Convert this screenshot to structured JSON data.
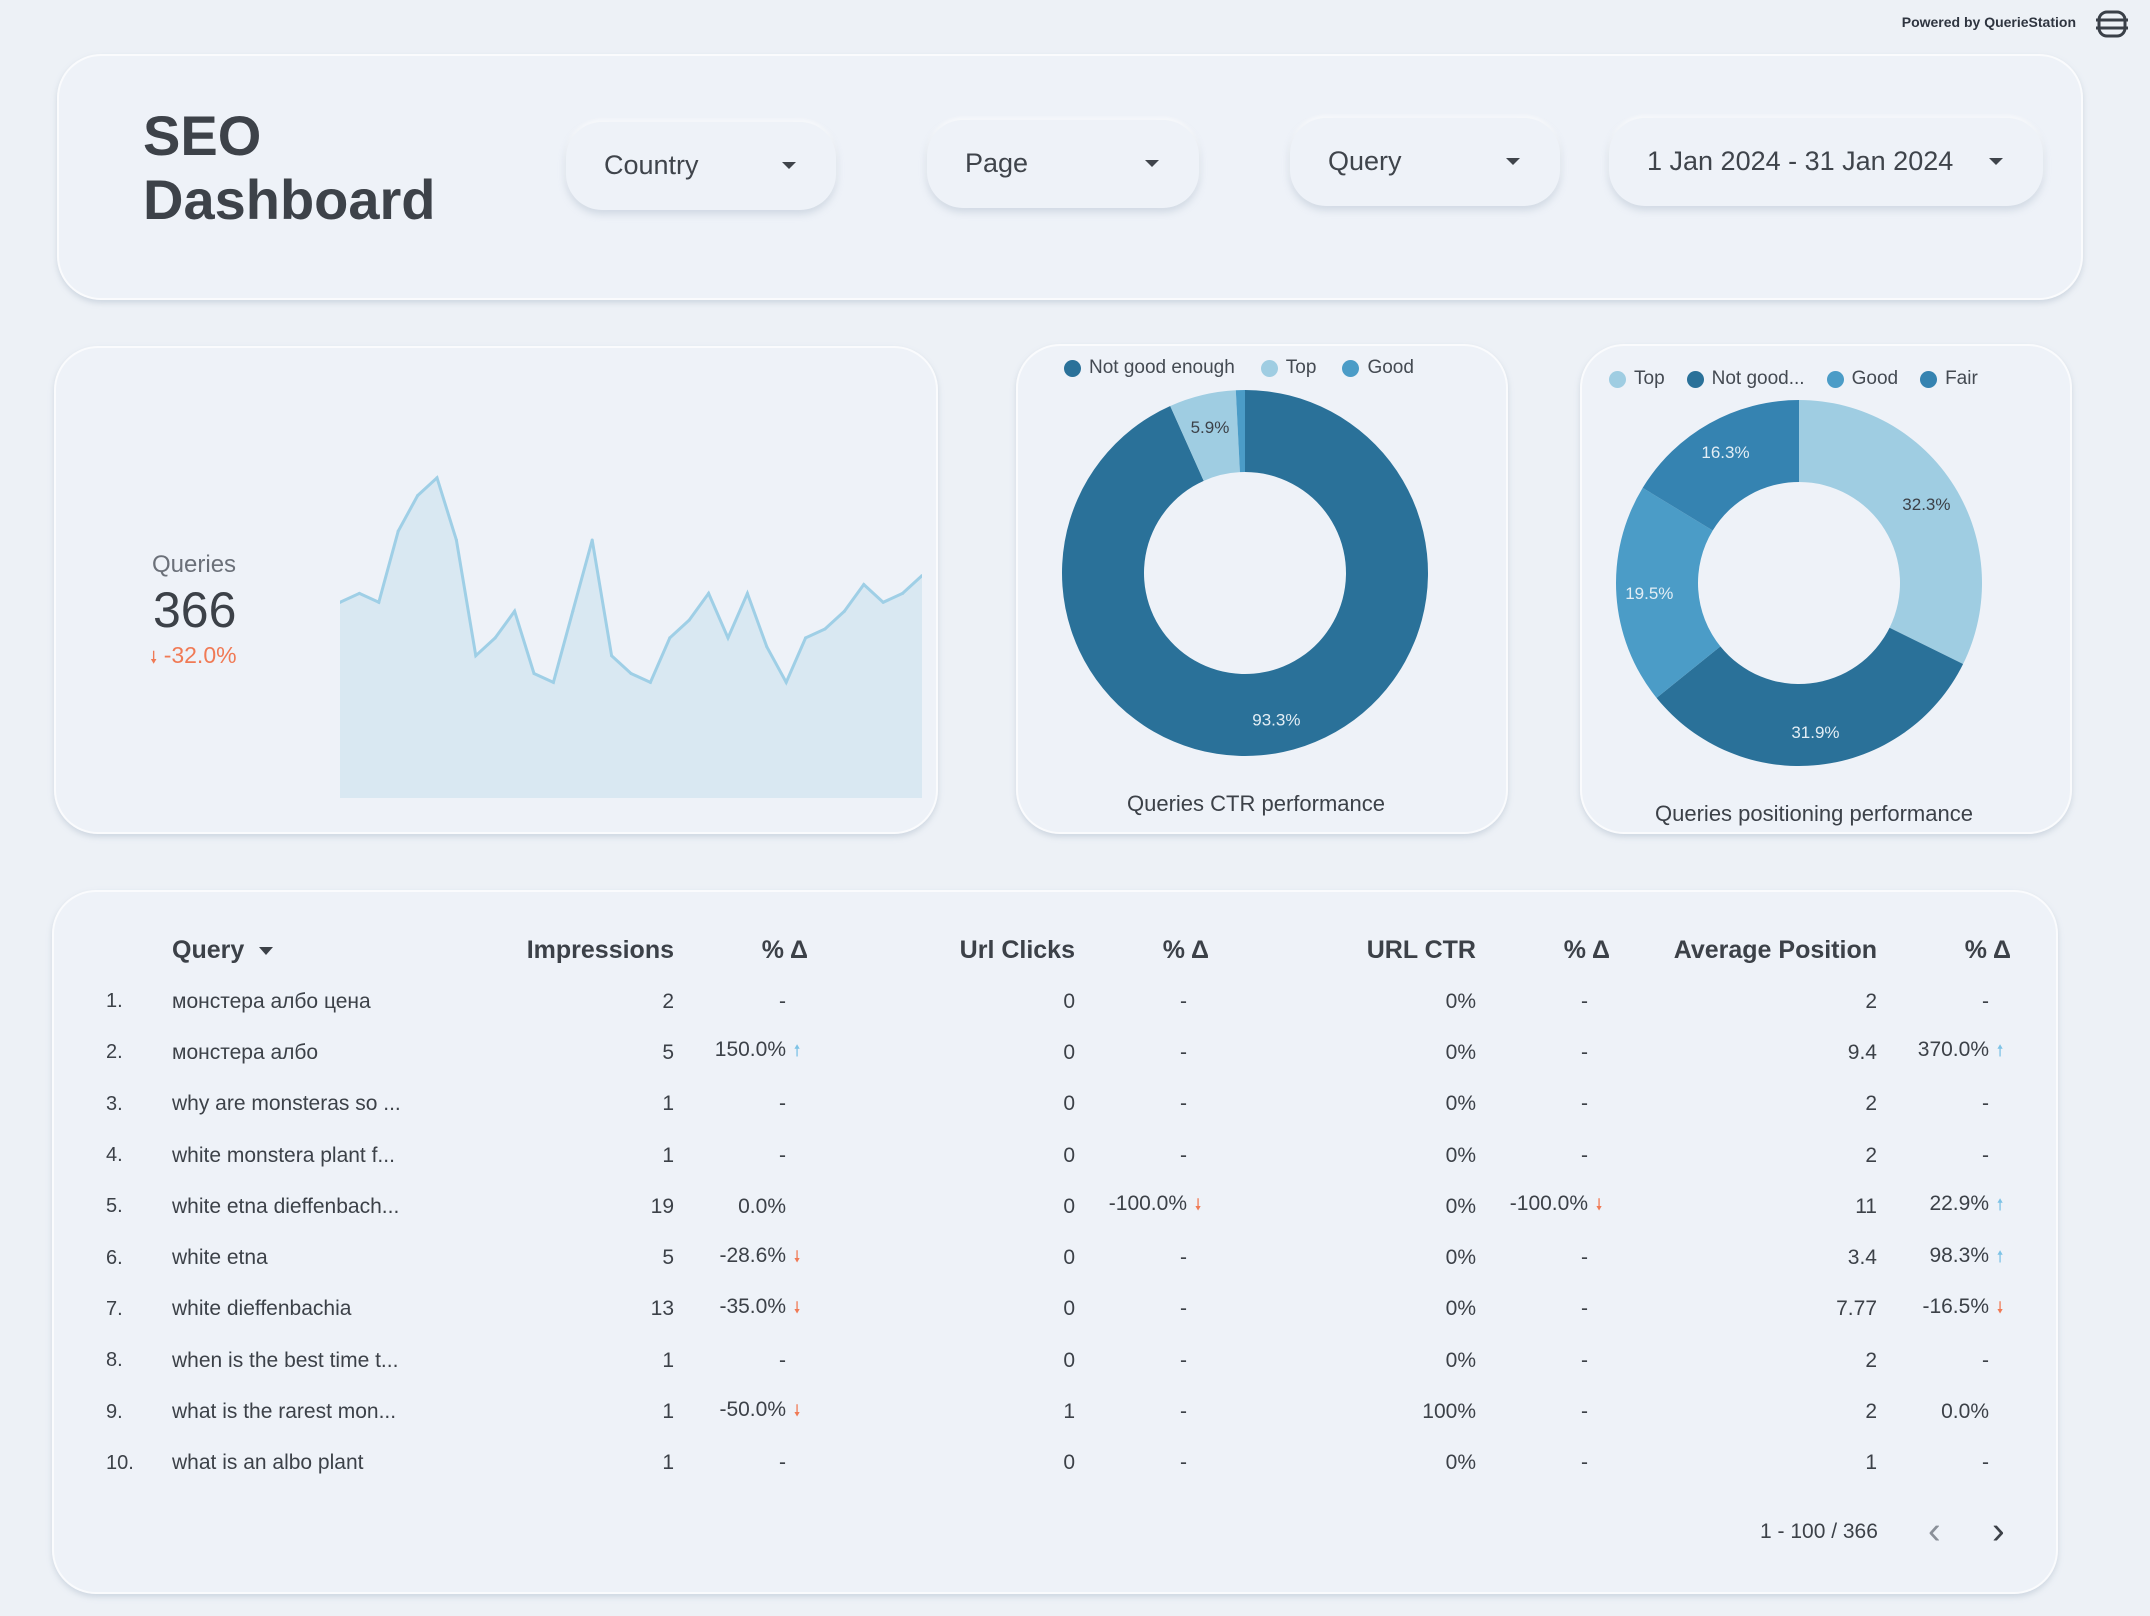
{
  "header": {
    "powered_by": "Powered by QuerieStation",
    "title_line1": "SEO",
    "title_line2": "Dashboard"
  },
  "filters": [
    {
      "label": "Country"
    },
    {
      "label": "Page"
    },
    {
      "label": "Query"
    },
    {
      "label": "1 Jan 2024 - 31 Jan 2024"
    }
  ],
  "scorecard": {
    "label": "Queries",
    "value": "366",
    "delta": "-32.0%",
    "delta_icon": "arrow-down-icon"
  },
  "chart_data": [
    {
      "type": "area",
      "x": [
        1,
        2,
        3,
        4,
        5,
        6,
        7,
        8,
        9,
        10,
        11,
        12,
        13,
        14,
        15,
        16,
        17,
        18,
        19,
        20,
        21,
        22,
        23,
        24,
        25,
        26,
        27,
        28,
        29,
        30,
        31
      ],
      "values": [
        22,
        23,
        22,
        30,
        34,
        36,
        29,
        16,
        18,
        21,
        14,
        13,
        21,
        29,
        16,
        14,
        13,
        18,
        20,
        23,
        18,
        23,
        17,
        13,
        18,
        19,
        21,
        24,
        22,
        23,
        25
      ],
      "color": "#9fcfe6",
      "fill": "#d9e8f2"
    },
    {
      "type": "pie",
      "caption": "Queries CTR performance",
      "labels": [
        "Not good enough",
        "Top",
        "Good"
      ],
      "values": [
        93.3,
        5.9,
        0.8
      ],
      "value_labels": [
        "93.3%",
        "5.9%",
        ""
      ],
      "colors": [
        "#2a7199",
        "#9fcde2",
        "#4b9cc7"
      ]
    },
    {
      "type": "pie",
      "caption": "Queries positioning performance",
      "labels": [
        "Top",
        "Not good...",
        "Good",
        "Fair"
      ],
      "values": [
        32.3,
        31.9,
        19.5,
        16.3
      ],
      "value_labels": [
        "32.3%",
        "31.9%",
        "19.5%",
        "16.3%"
      ],
      "colors": [
        "#9fcde2",
        "#2a7199",
        "#4b9cc7",
        "#3583b1"
      ]
    }
  ],
  "table": {
    "headers": {
      "query": "Query",
      "impressions": "Impressions",
      "imp_delta": "% Δ",
      "clicks": "Url Clicks",
      "clicks_delta": "% Δ",
      "ctr": "URL CTR",
      "ctr_delta": "% Δ",
      "avg_pos": "Average Position",
      "pos_delta": "% Δ"
    },
    "sort_icon": "caret-down-icon",
    "rows": [
      {
        "n": "1.",
        "q": "монстера албо цена",
        "imp": "2",
        "impd": "-",
        "impdir": "",
        "cl": "0",
        "cld": "-",
        "cldir": "",
        "ctr": "0%",
        "ctrd": "-",
        "ctrdir": "",
        "pos": "2",
        "posd": "-",
        "posdir": ""
      },
      {
        "n": "2.",
        "q": "монстера албо",
        "imp": "5",
        "impd": "150.0%",
        "impdir": "up",
        "cl": "0",
        "cld": "-",
        "cldir": "",
        "ctr": "0%",
        "ctrd": "-",
        "ctrdir": "",
        "pos": "9.4",
        "posd": "370.0%",
        "posdir": "up"
      },
      {
        "n": "3.",
        "q": "why are monsteras so ...",
        "imp": "1",
        "impd": "-",
        "impdir": "",
        "cl": "0",
        "cld": "-",
        "cldir": "",
        "ctr": "0%",
        "ctrd": "-",
        "ctrdir": "",
        "pos": "2",
        "posd": "-",
        "posdir": ""
      },
      {
        "n": "4.",
        "q": "white monstera plant f...",
        "imp": "1",
        "impd": "-",
        "impdir": "",
        "cl": "0",
        "cld": "-",
        "cldir": "",
        "ctr": "0%",
        "ctrd": "-",
        "ctrdir": "",
        "pos": "2",
        "posd": "-",
        "posdir": ""
      },
      {
        "n": "5.",
        "q": "white etna dieffenbach...",
        "imp": "19",
        "impd": "0.0%",
        "impdir": "",
        "cl": "0",
        "cld": "-100.0%",
        "cldir": "down",
        "ctr": "0%",
        "ctrd": "-100.0%",
        "ctrdir": "down",
        "pos": "11",
        "posd": "22.9%",
        "posdir": "up"
      },
      {
        "n": "6.",
        "q": "white etna",
        "imp": "5",
        "impd": "-28.6%",
        "impdir": "down",
        "cl": "0",
        "cld": "-",
        "cldir": "",
        "ctr": "0%",
        "ctrd": "-",
        "ctrdir": "",
        "pos": "3.4",
        "posd": "98.3%",
        "posdir": "up"
      },
      {
        "n": "7.",
        "q": "white dieffenbachia",
        "imp": "13",
        "impd": "-35.0%",
        "impdir": "down",
        "cl": "0",
        "cld": "-",
        "cldir": "",
        "ctr": "0%",
        "ctrd": "-",
        "ctrdir": "",
        "pos": "7.77",
        "posd": "-16.5%",
        "posdir": "down"
      },
      {
        "n": "8.",
        "q": "when is the best time t...",
        "imp": "1",
        "impd": "-",
        "impdir": "",
        "cl": "0",
        "cld": "-",
        "cldir": "",
        "ctr": "0%",
        "ctrd": "-",
        "ctrdir": "",
        "pos": "2",
        "posd": "-",
        "posdir": ""
      },
      {
        "n": "9.",
        "q": "what is the rarest mon...",
        "imp": "1",
        "impd": "-50.0%",
        "impdir": "down",
        "cl": "1",
        "cld": "-",
        "cldir": "",
        "ctr": "100%",
        "ctrd": "-",
        "ctrdir": "",
        "pos": "2",
        "posd": "0.0%",
        "posdir": ""
      },
      {
        "n": "10.",
        "q": "what is an albo plant",
        "imp": "1",
        "impd": "-",
        "impdir": "",
        "cl": "0",
        "cld": "-",
        "cldir": "",
        "ctr": "0%",
        "ctrd": "-",
        "ctrdir": "",
        "pos": "1",
        "posd": "-",
        "posdir": ""
      }
    ]
  },
  "pagination": {
    "text": "1 - 100 / 366",
    "prev_icon": "chevron-left-icon",
    "next_icon": "chevron-right-icon"
  },
  "colors": {
    "background": "#edf1f6",
    "positive": "#7ec3e6",
    "negative": "#f07a55"
  }
}
